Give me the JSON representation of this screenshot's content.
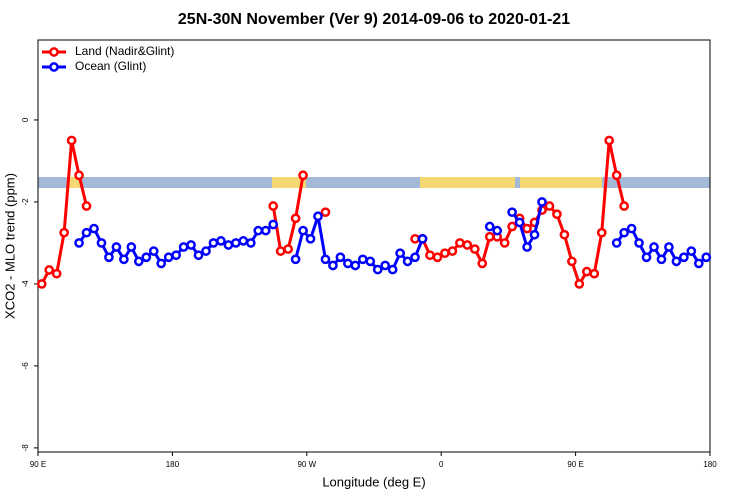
{
  "chart_data": {
    "type": "line",
    "title": "25N-30N November (Ver 9)   2014-09-06 to 2020-01-21",
    "x_label": "Longitude (deg E)",
    "y_label": "XCO2 - MLO trend (ppm)",
    "xlim": [
      90,
      540
    ],
    "ylim": [
      -8.1,
      1.95
    ],
    "xticks": [
      {
        "value": 90,
        "label": "90 E"
      },
      180,
      {
        "value": 270,
        "label": "90 W"
      },
      {
        "value": 360,
        "label": "0"
      },
      {
        "value": 450,
        "label": "90 E"
      },
      {
        "value": 540,
        "label": "180"
      }
    ],
    "yticks": [
      0,
      -2,
      -4,
      -6,
      -8
    ],
    "legend": "top-left",
    "x": [
      92.5,
      97.5,
      102.5,
      107.5,
      112.5,
      117.5,
      122.5,
      127.5,
      132.5,
      137.5,
      142.5,
      147.5,
      152.5,
      157.5,
      162.5,
      167.5,
      172.5,
      177.5,
      182.5,
      187.5,
      192.5,
      197.5,
      202.5,
      207.5,
      212.5,
      217.5,
      222.5,
      227.5,
      232.5,
      237.5,
      242.5,
      247.5,
      252.5,
      257.5,
      262.5,
      267.5,
      272.5,
      277.5,
      282.5,
      287.5,
      292.5,
      297.5,
      302.5,
      307.5,
      312.5,
      317.5,
      322.5,
      327.5,
      332.5,
      337.5,
      342.5,
      347.5,
      352.5,
      357.5,
      362.5,
      367.5,
      372.5,
      377.5,
      382.5,
      387.5,
      392.5,
      397.5,
      402.5,
      407.5,
      412.5,
      417.5,
      422.5,
      427.5,
      432.5,
      437.5,
      442.5,
      447.5,
      452.5,
      457.5,
      462.5,
      467.5,
      472.5,
      477.5,
      482.5,
      487.5,
      492.5,
      497.5,
      502.5,
      507.5,
      512.5,
      517.5,
      522.5,
      527.5,
      532.5,
      537.5
    ],
    "series": [
      {
        "name": "Land (Nadir&Glint)",
        "color": "#ff0000",
        "values": [
          -4.0,
          -3.66,
          -3.75,
          -2.75,
          -0.5,
          -1.35,
          -2.1,
          null,
          null,
          null,
          null,
          null,
          null,
          null,
          null,
          null,
          null,
          null,
          null,
          null,
          null,
          null,
          null,
          null,
          null,
          null,
          null,
          null,
          null,
          null,
          null,
          -2.1,
          -3.2,
          -3.15,
          -2.4,
          -1.35,
          null,
          null,
          -2.25,
          null,
          null,
          null,
          null,
          null,
          null,
          null,
          null,
          null,
          null,
          null,
          -2.9,
          -2.9,
          -3.3,
          -3.35,
          -3.25,
          -3.2,
          -3.0,
          -3.05,
          -3.15,
          -3.5,
          -2.85,
          -2.85,
          -3.0,
          -2.6,
          -2.4,
          -2.65,
          -2.5,
          -2.2,
          -2.1,
          -2.3,
          -2.8,
          -3.45,
          -4.0,
          -3.7,
          -3.75,
          -2.75,
          -0.5,
          -1.35,
          -2.1,
          null,
          null,
          null,
          null,
          null,
          null,
          null,
          null,
          null,
          null,
          null
        ]
      },
      {
        "name": "Ocean (Glint)",
        "color": "#0000ff",
        "values": [
          null,
          null,
          null,
          null,
          null,
          -3.0,
          -2.75,
          -2.65,
          -3.0,
          -3.35,
          -3.1,
          -3.4,
          -3.1,
          -3.45,
          -3.35,
          -3.2,
          -3.5,
          -3.35,
          -3.3,
          -3.1,
          -3.05,
          -3.3,
          -3.2,
          -3.0,
          -2.95,
          -3.05,
          -3.0,
          -2.95,
          -3.0,
          -2.7,
          -2.7,
          -2.55,
          null,
          null,
          -3.4,
          -2.7,
          -2.9,
          -2.35,
          -3.4,
          -3.55,
          -3.35,
          -3.5,
          -3.55,
          -3.4,
          -3.45,
          -3.65,
          -3.55,
          -3.65,
          -3.25,
          -3.45,
          -3.35,
          -2.9,
          null,
          null,
          null,
          null,
          null,
          null,
          null,
          null,
          -2.6,
          -2.7,
          null,
          -2.25,
          -2.5,
          -3.1,
          -2.8,
          -2.0,
          null,
          null,
          null,
          null,
          null,
          null,
          null,
          null,
          null,
          -3.0,
          -2.75,
          -2.65,
          -3.0,
          -3.35,
          -3.1,
          -3.4,
          -3.1,
          -3.45,
          -3.35,
          -3.2,
          -3.5,
          -3.35
        ]
      }
    ]
  }
}
